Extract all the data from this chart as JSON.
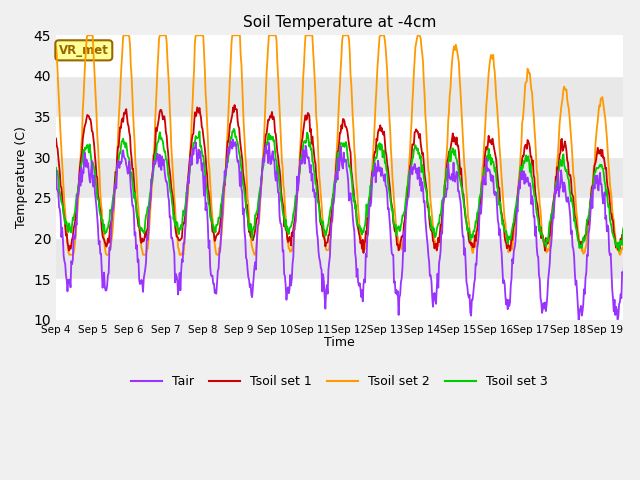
{
  "title": "Soil Temperature at -4cm",
  "xlabel": "Time",
  "ylabel": "Temperature (C)",
  "ylim": [
    10,
    45
  ],
  "background_color": "#f0f0f0",
  "plot_bg_color": "#f0f0f0",
  "grid_color": "white",
  "colors": {
    "Tair": "#9933ff",
    "Tsoil1": "#cc0000",
    "Tsoil2": "#ff9900",
    "Tsoil3": "#00cc00"
  },
  "legend_labels": [
    "Tair",
    "Tsoil set 1",
    "Tsoil set 2",
    "Tsoil set 3"
  ],
  "annotation_text": "VR_met",
  "annotation_box_color": "#ffff99",
  "annotation_border_color": "#996600",
  "tick_labels": [
    "Sep 4",
    "Sep 5",
    "Sep 6",
    "Sep 7",
    "Sep 8",
    "Sep 9",
    "Sep 10",
    "Sep 11",
    "Sep 12",
    "Sep 13",
    "Sep 14",
    "Sep 15",
    "Sep 16",
    "Sep 17",
    "Sep 18",
    "Sep 19"
  ],
  "n_days": 16,
  "samples_per_day": 48,
  "figsize": [
    6.4,
    4.8
  ],
  "dpi": 100
}
